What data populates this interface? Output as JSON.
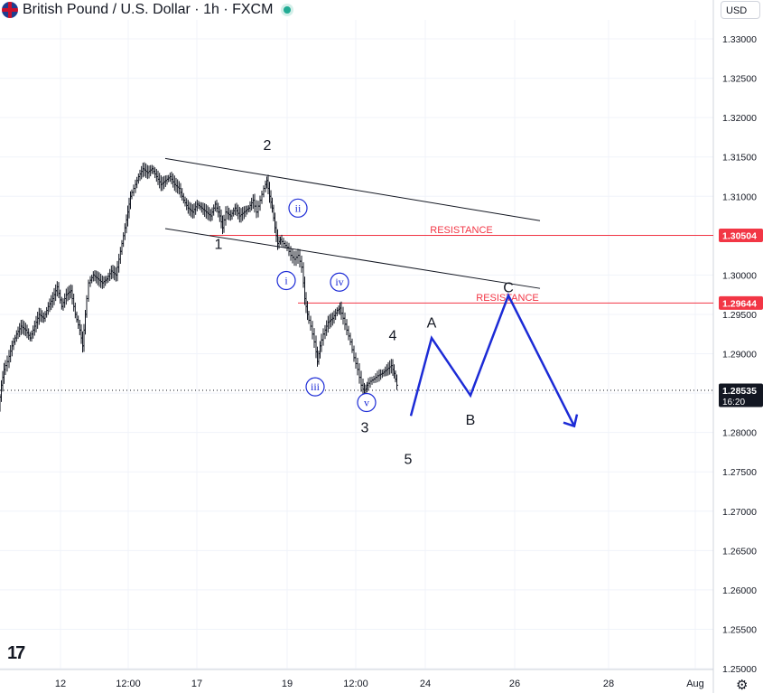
{
  "header": {
    "title": "British Pound / U.S. Dollar · 1h · FXCM",
    "currency": "USD"
  },
  "price_labels": [
    {
      "price": 1.30504,
      "text": "1.30504",
      "color": "#f23645"
    },
    {
      "price": 1.29644,
      "text": "1.29644",
      "color": "#f23645"
    },
    {
      "price": 1.28535,
      "text": "1.28535",
      "sub": "16:20",
      "color": "#131722"
    }
  ],
  "annotations": {
    "resistance_labels": [
      {
        "text": "RESISTANCE",
        "price": 1.3053
      },
      {
        "text": "RESISTANCE",
        "price": 1.2967
      }
    ],
    "wave_labels_black": [
      {
        "text": "1",
        "price": 1.3033
      },
      {
        "text": "2",
        "price": 1.3159
      },
      {
        "text": "3",
        "price": 1.28
      },
      {
        "text": "4",
        "price": 1.2917
      },
      {
        "text": "5",
        "price": 1.276
      }
    ],
    "wave_labels_circled": [
      {
        "text": "i",
        "price": 1.2993
      },
      {
        "text": "ii",
        "price": 1.3085
      },
      {
        "text": "iii",
        "price": 1.2858
      },
      {
        "text": "iv",
        "price": 1.2991
      },
      {
        "text": "v",
        "price": 1.2838
      }
    ],
    "projection_labels": [
      {
        "text": "A",
        "price": 1.2933
      },
      {
        "text": "B",
        "price": 1.281
      },
      {
        "text": "C",
        "price": 1.2978
      }
    ]
  },
  "colors": {
    "resistance": "#f23645",
    "projection": "#1c2bd6",
    "price": "#131722",
    "grid": "#f0f3fa"
  },
  "chart_data": {
    "type": "line",
    "title": "British Pound / U.S. Dollar · 1h · FXCM",
    "x_ticks": [
      "12",
      "12:00",
      "17",
      "19",
      "12:00",
      "24",
      "26",
      "28",
      "Aug"
    ],
    "y_ticks": [
      1.33,
      1.325,
      1.32,
      1.315,
      1.31,
      1.305,
      1.3,
      1.295,
      1.29,
      1.285,
      1.28,
      1.275,
      1.27,
      1.265,
      1.26,
      1.255,
      1.25
    ],
    "y_tick_labels": [
      "1.33000",
      "1.32500",
      "1.32000",
      "1.31500",
      "1.31000",
      "1.30500",
      "1.30000",
      "1.29500",
      "1.29000",
      "1.28500",
      "1.28000",
      "1.27500",
      "1.27000",
      "1.26500",
      "1.26000",
      "1.25500",
      "1.25000"
    ],
    "ylim": [
      1.25,
      1.33
    ],
    "last_price": 1.28535,
    "resistance_levels": [
      1.30504,
      1.29644
    ],
    "series": [
      {
        "values": [
          [
            0,
            1.283
          ],
          [
            3,
            1.286
          ],
          [
            6,
            1.288
          ],
          [
            10,
            1.289
          ],
          [
            15,
            1.291
          ],
          [
            20,
            1.2925
          ],
          [
            25,
            1.2935
          ],
          [
            30,
            1.293
          ],
          [
            35,
            1.292
          ],
          [
            40,
            1.2935
          ],
          [
            45,
            1.295
          ],
          [
            50,
            1.2945
          ],
          [
            55,
            1.296
          ],
          [
            60,
            1.297
          ],
          [
            65,
            1.2985
          ],
          [
            70,
            1.296
          ],
          [
            75,
            1.2975
          ],
          [
            80,
            1.298
          ],
          [
            85,
            1.295
          ],
          [
            90,
            1.293
          ],
          [
            93,
            1.291
          ],
          [
            96,
            1.295
          ],
          [
            100,
            1.299
          ],
          [
            105,
            1.3
          ],
          [
            110,
            1.2995
          ],
          [
            115,
            1.299
          ],
          [
            120,
            1.2995
          ],
          [
            125,
            1.3005
          ],
          [
            130,
            1.3
          ],
          [
            135,
            1.303
          ],
          [
            140,
            1.306
          ],
          [
            143,
            1.308
          ],
          [
            146,
            1.31
          ],
          [
            150,
            1.311
          ],
          [
            155,
            1.3125
          ],
          [
            160,
            1.3135
          ],
          [
            165,
            1.313
          ],
          [
            170,
            1.3135
          ],
          [
            175,
            1.3125
          ],
          [
            180,
            1.3115
          ],
          [
            185,
            1.312
          ],
          [
            190,
            1.3125
          ],
          [
            195,
            1.3115
          ],
          [
            200,
            1.311
          ],
          [
            205,
            1.3095
          ],
          [
            210,
            1.3085
          ],
          [
            215,
            1.308
          ],
          [
            220,
            1.309
          ],
          [
            225,
            1.3085
          ],
          [
            230,
            1.308
          ],
          [
            235,
            1.3075
          ],
          [
            240,
            1.309
          ],
          [
            245,
            1.3075
          ],
          [
            248,
            1.306
          ],
          [
            252,
            1.308
          ],
          [
            257,
            1.3075
          ],
          [
            262,
            1.3085
          ],
          [
            267,
            1.3075
          ],
          [
            272,
            1.308
          ],
          [
            277,
            1.3085
          ],
          [
            282,
            1.3095
          ],
          [
            286,
            1.308
          ],
          [
            290,
            1.3095
          ],
          [
            294,
            1.311
          ],
          [
            297,
            1.312
          ],
          [
            300,
            1.31
          ],
          [
            303,
            1.3085
          ],
          [
            306,
            1.306
          ],
          [
            309,
            1.304
          ],
          [
            312,
            1.3045
          ],
          [
            316,
            1.304
          ],
          [
            320,
            1.3035
          ],
          [
            324,
            1.3025
          ],
          [
            328,
            1.302
          ],
          [
            332,
            1.3025
          ],
          [
            336,
            1.301
          ],
          [
            339,
            1.297
          ],
          [
            342,
            1.295
          ],
          [
            346,
            1.2935
          ],
          [
            350,
            1.2915
          ],
          [
            353,
            1.289
          ],
          [
            356,
            1.291
          ],
          [
            360,
            1.2925
          ],
          [
            365,
            1.294
          ],
          [
            370,
            1.2945
          ],
          [
            375,
            1.2955
          ],
          [
            378,
            1.2958
          ],
          [
            382,
            1.2945
          ],
          [
            386,
            1.293
          ],
          [
            390,
            1.2915
          ],
          [
            394,
            1.2895
          ],
          [
            398,
            1.288
          ],
          [
            402,
            1.286
          ],
          [
            405,
            1.285
          ],
          [
            408,
            1.286
          ],
          [
            412,
            1.2865
          ],
          [
            416,
            1.2868
          ],
          [
            420,
            1.2872
          ],
          [
            425,
            1.2875
          ],
          [
            430,
            1.288
          ],
          [
            435,
            1.2885
          ],
          [
            438,
            1.2875
          ],
          [
            441,
            1.286
          ]
        ]
      },
      {
        "values": [
          [
            455,
            1.2821
          ],
          [
            478,
            1.292
          ],
          [
            521,
            1.2847
          ],
          [
            563,
            1.2974
          ],
          [
            636,
            1.2808
          ]
        ]
      }
    ],
    "channel_lines": [
      {
        "from": [
          183,
          1.3148
        ],
        "to": [
          598,
          1.3069
        ]
      },
      {
        "from": [
          183,
          1.3059
        ],
        "to": [
          598,
          1.2983
        ]
      }
    ]
  }
}
